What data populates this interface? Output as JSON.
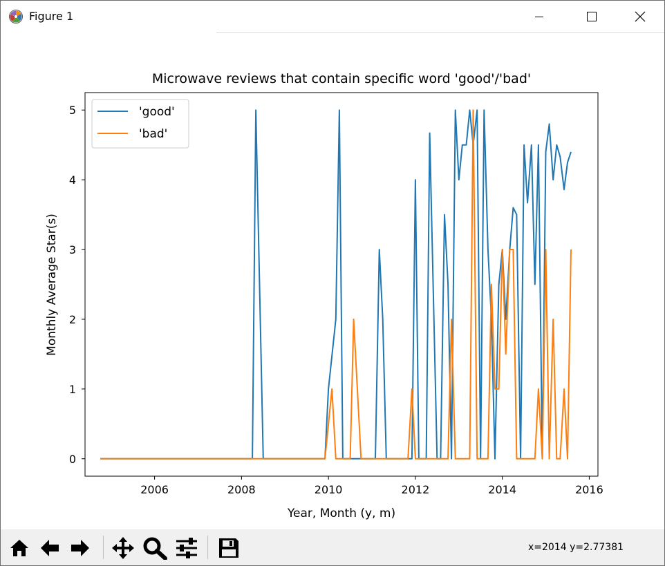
{
  "window": {
    "title": "Figure 1",
    "controls": [
      "minimize",
      "maximize",
      "close"
    ]
  },
  "toolbar": {
    "buttons": [
      "home-icon",
      "back-arrow-icon",
      "forward-arrow-icon",
      "pan-icon",
      "zoom-icon",
      "configure-subplots-icon",
      "save-icon"
    ],
    "coordinates": "x=2014 y=2.77381"
  },
  "colors": {
    "good": "#1f77b4",
    "bad": "#ff7f0e"
  },
  "chart_data": {
    "type": "line",
    "title": "Microwave reviews that contain specific word 'good'/'bad'",
    "xlabel": "Year, Month (y, m)",
    "ylabel": "Monthly Average Star(s)",
    "xlim": [
      2004.4,
      2016.2
    ],
    "ylim": [
      -0.25,
      5.25
    ],
    "xticks": [
      2006,
      2008,
      2010,
      2012,
      2014,
      2016
    ],
    "xtick_labels": [
      "2006",
      "2008",
      "2010",
      "2012",
      "2014",
      "2016"
    ],
    "yticks": [
      0,
      1,
      2,
      3,
      4,
      5
    ],
    "ytick_labels": [
      "0",
      "1",
      "2",
      "3",
      "4",
      "5"
    ],
    "legend_position": "upper-left",
    "grid": false,
    "series": [
      {
        "name": "'good'",
        "color": "#1f77b4",
        "x": [
          2004.75,
          2008.25,
          2008.33,
          2008.5,
          2009.92,
          2010.0,
          2010.17,
          2010.25,
          2010.33,
          2011.08,
          2011.17,
          2011.25,
          2011.33,
          2011.92,
          2012.0,
          2012.08,
          2012.25,
          2012.33,
          2012.5,
          2012.58,
          2012.67,
          2012.75,
          2012.83,
          2012.92,
          2013.0,
          2013.08,
          2013.17,
          2013.25,
          2013.33,
          2013.42,
          2013.5,
          2013.58,
          2013.67,
          2013.75,
          2013.83,
          2013.92,
          2014.0,
          2014.08,
          2014.17,
          2014.25,
          2014.33,
          2014.42,
          2014.5,
          2014.58,
          2014.67,
          2014.75,
          2014.83,
          2014.92,
          2015.0,
          2015.08,
          2015.17,
          2015.25,
          2015.33,
          2015.42,
          2015.5,
          2015.58
        ],
        "y": [
          0,
          0,
          5,
          0,
          0,
          1,
          2,
          5,
          0,
          0,
          3,
          2,
          0,
          0,
          4,
          0,
          0,
          4.67,
          0,
          0,
          3.5,
          2.5,
          0,
          5,
          4,
          4.5,
          4.5,
          5,
          4.5,
          5,
          0,
          5,
          3,
          2,
          0,
          2.5,
          3,
          2,
          3,
          3.6,
          3.5,
          0,
          4.5,
          3.67,
          4.5,
          2.5,
          4.5,
          0,
          4.4,
          4.8,
          4.0,
          4.5,
          4.33,
          3.86,
          4.25,
          4.4
        ]
      },
      {
        "name": "'bad'",
        "color": "#ff7f0e",
        "x": [
          2004.75,
          2009.92,
          2010.08,
          2010.17,
          2010.5,
          2010.58,
          2010.75,
          2010.83,
          2011.83,
          2011.92,
          2012.0,
          2012.67,
          2012.75,
          2012.83,
          2012.92,
          2013.08,
          2013.25,
          2013.33,
          2013.42,
          2013.67,
          2013.75,
          2013.83,
          2013.92,
          2014.0,
          2014.08,
          2014.17,
          2014.25,
          2014.33,
          2014.75,
          2014.83,
          2014.92,
          2015.0,
          2015.08,
          2015.17,
          2015.25,
          2015.33,
          2015.42,
          2015.5,
          2015.58
        ],
        "y": [
          0,
          0,
          1,
          0,
          0,
          2,
          0,
          0,
          0,
          1,
          0,
          0,
          0,
          2,
          0,
          0,
          0,
          5,
          0,
          0,
          2.5,
          1,
          1,
          3,
          1.5,
          3,
          3,
          0,
          0,
          1,
          0,
          3,
          0,
          2,
          0,
          0,
          1,
          0,
          3
        ]
      }
    ]
  }
}
